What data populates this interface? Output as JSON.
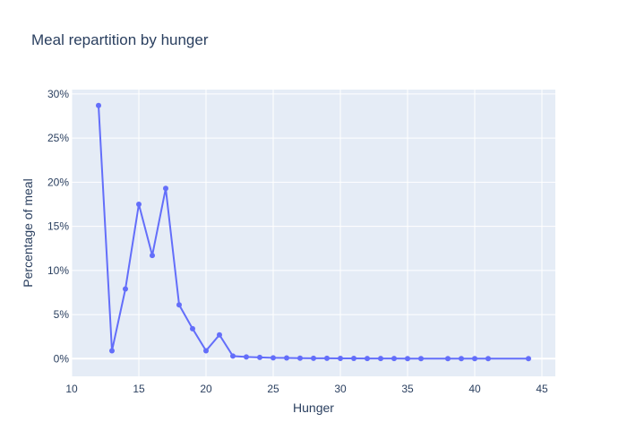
{
  "chart_data": {
    "type": "line",
    "title": "Meal repartition by hunger",
    "xlabel": "Hunger",
    "ylabel": "Percentage of meal",
    "xlim": [
      10,
      46
    ],
    "ylim": [
      -0.02,
      0.305
    ],
    "x_ticks": [
      10,
      15,
      20,
      25,
      30,
      35,
      40,
      45
    ],
    "x_tick_labels": [
      "10",
      "15",
      "20",
      "25",
      "30",
      "35",
      "40",
      "45"
    ],
    "y_ticks": [
      0,
      0.05,
      0.1,
      0.15,
      0.2,
      0.25,
      0.3
    ],
    "y_tick_labels": [
      "0%",
      "5%",
      "10%",
      "15%",
      "20%",
      "25%",
      "30%"
    ],
    "grid": true,
    "legend": "none",
    "line_color": "#636efa",
    "plot_bg": "#e5ecf6",
    "series": [
      {
        "x": [
          12,
          13,
          14,
          15,
          16,
          17,
          18,
          19,
          20,
          21,
          22,
          23,
          24,
          25,
          26,
          27,
          28,
          29,
          30,
          31,
          32,
          33,
          34,
          35,
          36,
          38,
          39,
          40,
          41,
          44
        ],
        "values": [
          0.287,
          0.009,
          0.079,
          0.175,
          0.117,
          0.193,
          0.061,
          0.034,
          0.009,
          0.027,
          0.003,
          0.002,
          0.0015,
          0.001,
          0.0008,
          0.0006,
          0.0004,
          0.0004,
          0.0003,
          0.0003,
          0.0002,
          0.0002,
          0.0002,
          0.0001,
          0.0001,
          0.0001,
          0.0001,
          0.0001,
          0.0001,
          0.0001
        ]
      }
    ]
  }
}
